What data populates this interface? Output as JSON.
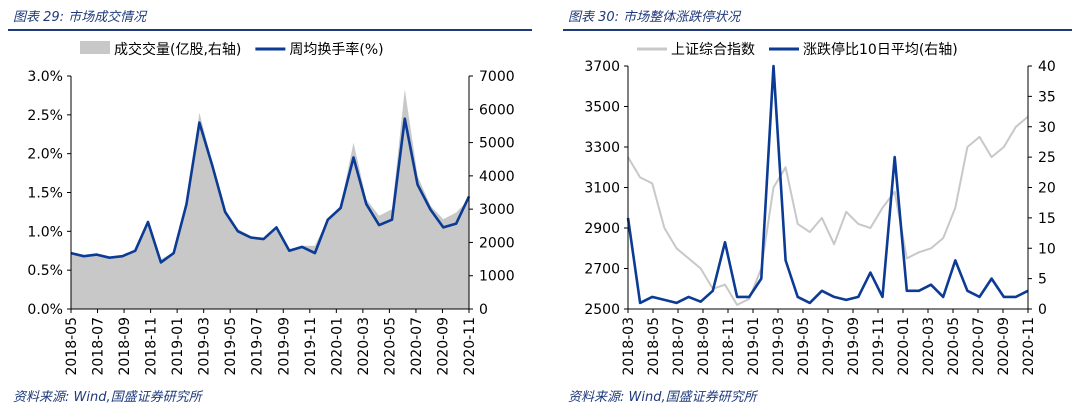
{
  "left": {
    "title": "图表 29:  市场成交情况",
    "source": "资料来源:  Wind,国盛证券研究所"
  },
  "right": {
    "title": "图表 30:  市场整体涨跌停状况",
    "source": "资料来源:  Wind,国盛证券研究所"
  },
  "colors": {
    "blue": "#0b3b94",
    "gray": "#c8c8c8",
    "rule": "#1f3a7a"
  },
  "chart_data": [
    {
      "type": "area",
      "title": "",
      "legend_position": "top",
      "categories": [
        "2018-05",
        "2018-06",
        "2018-07",
        "2018-08",
        "2018-09",
        "2018-10",
        "2018-11",
        "2018-12",
        "2019-01",
        "2019-02",
        "2019-03",
        "2019-04",
        "2019-05",
        "2019-06",
        "2019-07",
        "2019-08",
        "2019-09",
        "2019-10",
        "2019-11",
        "2019-12",
        "2020-01",
        "2020-02",
        "2020-03",
        "2020-04",
        "2020-05",
        "2020-06",
        "2020-07",
        "2020-08",
        "2020-09",
        "2020-10",
        "2020-11",
        "2020-12"
      ],
      "x_ticks": [
        "2018-05",
        "2018-07",
        "2018-09",
        "2018-11",
        "2019-01",
        "2019-03",
        "2019-05",
        "2019-07",
        "2019-09",
        "2019-11",
        "2020-01",
        "2020-03",
        "2020-05",
        "2020-07",
        "2020-09",
        "2020-11"
      ],
      "y_left": {
        "ticks": [
          "0.0%",
          "0.5%",
          "1.0%",
          "1.5%",
          "2.0%",
          "2.5%",
          "3.0%"
        ],
        "min": 0,
        "max": 3.0
      },
      "y_right": {
        "ticks": [
          "0",
          "1000",
          "2000",
          "3000",
          "4000",
          "5000",
          "6000",
          "7000"
        ],
        "min": 0,
        "max": 7000
      },
      "series": [
        {
          "name": "成交交量(亿股,右轴)",
          "kind": "area",
          "axis": "right",
          "values": [
            1700,
            1600,
            1650,
            1500,
            1550,
            1700,
            2600,
            1500,
            1700,
            3200,
            5900,
            4400,
            2900,
            2400,
            2200,
            2100,
            2400,
            1800,
            1900,
            1900,
            2700,
            3100,
            5000,
            3300,
            2800,
            3000,
            6600,
            4000,
            3100,
            2700,
            2900,
            3300
          ]
        },
        {
          "name": "周均换手率(%)",
          "kind": "line",
          "axis": "left",
          "values": [
            0.72,
            0.68,
            0.7,
            0.66,
            0.68,
            0.75,
            1.12,
            0.6,
            0.72,
            1.35,
            2.4,
            1.85,
            1.25,
            1.0,
            0.92,
            0.9,
            1.05,
            0.75,
            0.8,
            0.72,
            1.15,
            1.3,
            1.95,
            1.35,
            1.08,
            1.15,
            2.45,
            1.6,
            1.28,
            1.05,
            1.1,
            1.45
          ]
        }
      ]
    },
    {
      "type": "line",
      "title": "",
      "legend_position": "top",
      "categories": [
        "2018-03",
        "2018-04",
        "2018-05",
        "2018-06",
        "2018-07",
        "2018-08",
        "2018-09",
        "2018-10",
        "2018-11",
        "2018-12",
        "2019-01",
        "2019-02",
        "2019-03",
        "2019-04",
        "2019-05",
        "2019-06",
        "2019-07",
        "2019-08",
        "2019-09",
        "2019-10",
        "2019-11",
        "2019-12",
        "2020-01",
        "2020-02",
        "2020-03",
        "2020-04",
        "2020-05",
        "2020-06",
        "2020-07",
        "2020-08",
        "2020-09",
        "2020-10",
        "2020-11",
        "2020-12"
      ],
      "x_ticks": [
        "2018-03",
        "2018-05",
        "2018-07",
        "2018-09",
        "2018-11",
        "2019-01",
        "2019-03",
        "2019-05",
        "2019-07",
        "2019-09",
        "2019-11",
        "2020-01",
        "2020-03",
        "2020-05",
        "2020-07",
        "2020-09",
        "2020-11"
      ],
      "y_left": {
        "ticks": [
          "2500",
          "2700",
          "2900",
          "3100",
          "3300",
          "3500",
          "3700"
        ],
        "min": 2500,
        "max": 3700
      },
      "y_right": {
        "ticks": [
          "0",
          "5",
          "10",
          "15",
          "20",
          "25",
          "30",
          "35",
          "40"
        ],
        "min": 0,
        "max": 40
      },
      "series": [
        {
          "name": "上证综合指数",
          "kind": "line",
          "axis": "left",
          "values": [
            3250,
            3150,
            3120,
            2900,
            2800,
            2750,
            2700,
            2600,
            2620,
            2520,
            2550,
            2700,
            3100,
            3200,
            2920,
            2880,
            2950,
            2820,
            2980,
            2920,
            2900,
            3000,
            3080,
            2750,
            2780,
            2800,
            2850,
            3000,
            3300,
            3350,
            3250,
            3300,
            3400,
            3450
          ]
        },
        {
          "name": "涨跌停比10日平均(右轴)",
          "kind": "line",
          "axis": "right",
          "values": [
            15,
            1,
            2,
            1.5,
            1,
            2,
            1.2,
            3,
            11,
            2,
            2,
            5,
            40,
            8,
            2,
            1,
            3,
            2,
            1.5,
            2,
            6,
            2,
            25,
            3,
            3,
            4,
            2,
            8,
            3,
            2,
            5,
            2,
            2,
            3
          ]
        }
      ]
    }
  ]
}
